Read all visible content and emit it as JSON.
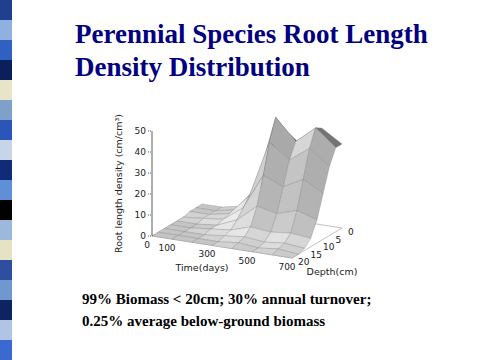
{
  "title": "Perennial Species Root Length Density Distribution",
  "chart_data": {
    "type": "surface",
    "x": [
      0,
      100,
      200,
      300,
      400,
      500,
      600,
      700
    ],
    "y": [
      0,
      2.5,
      5,
      7.5,
      10,
      12.5,
      15,
      17.5,
      20
    ],
    "values": [
      [
        1,
        1,
        3,
        14,
        44,
        36,
        46,
        40
      ],
      [
        1,
        1,
        3,
        15,
        50,
        40,
        48,
        40
      ],
      [
        1,
        1,
        3,
        13,
        40,
        33,
        40,
        33
      ],
      [
        0,
        1,
        2,
        9,
        26,
        22,
        27,
        22
      ],
      [
        0,
        0,
        1,
        5,
        13,
        11,
        14,
        11
      ],
      [
        0,
        0,
        1,
        2,
        5,
        4,
        5,
        4
      ],
      [
        0,
        0,
        0,
        1,
        2,
        1,
        2,
        1
      ],
      [
        0,
        0,
        0,
        0,
        1,
        0,
        1,
        0
      ],
      [
        0,
        0,
        0,
        0,
        0,
        0,
        0,
        0
      ]
    ],
    "x_label": "Time(days)",
    "y_label": "Depth(cm)",
    "z_label": "Root length density (cm/cm³)",
    "xlim": [
      0,
      700
    ],
    "xticks": [
      0,
      100,
      300,
      500,
      700
    ],
    "ylim": [
      0,
      20
    ],
    "yticks": [
      0,
      5,
      10,
      15,
      20
    ],
    "zlim": [
      0,
      50
    ],
    "zticks": [
      0,
      10,
      20,
      30,
      40,
      50
    ]
  },
  "annotations": [
    "99% Biomass < 20cm; 30% annual turnover;",
    "0.25% average below-ground biomass"
  ]
}
